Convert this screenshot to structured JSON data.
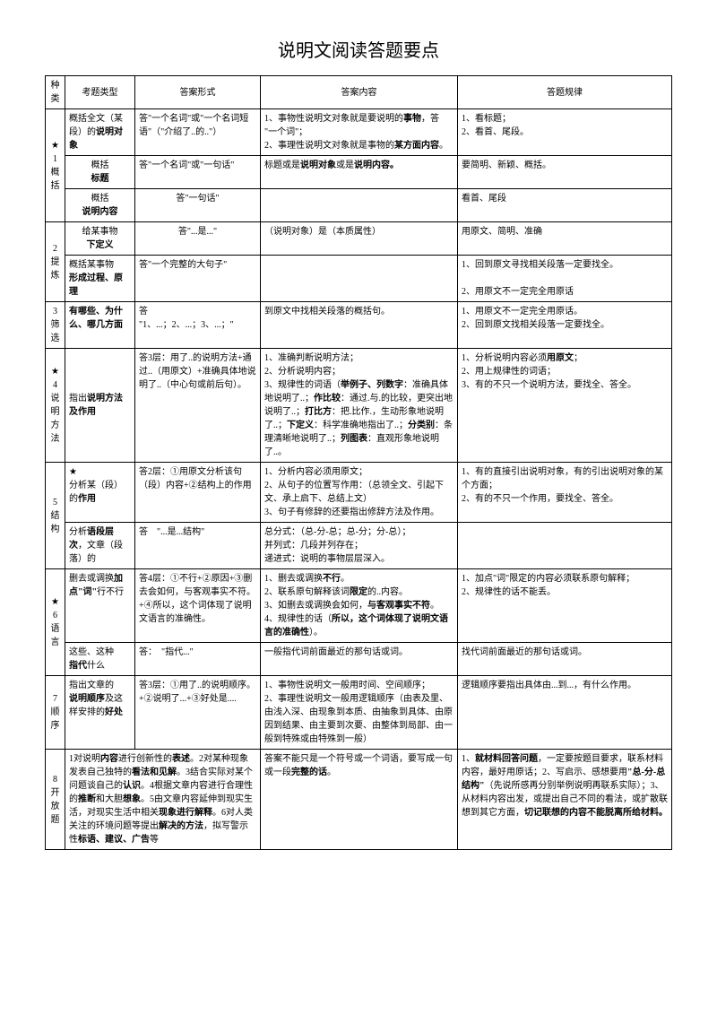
{
  "title": "说明文阅读答题要点",
  "headers": {
    "col1": "种类",
    "col2": "考题类型",
    "col3": "答案形式",
    "col4": "答案内容",
    "col5": "答题规律"
  },
  "sections": [
    {
      "label": "★\n1\n概括",
      "rows": [
        {
          "type": "概括全文（某段）的说明对象",
          "form": "答\"一个名词\"或\"一个名词短语\"（\"介绍了..的..\"）",
          "content": "1、事物性说明文对象就是要说明的事物，答\"一个词\"；\n2、事理性说明文对象就是事物的某方面内容。",
          "rule": "1、看标题；\n2、看首、尾段。"
        },
        {
          "type": "概括标题",
          "form": "答\"一个名词\"或\"一句话\"",
          "content": "标题或是说明对象或是说明内容。",
          "rule": "要简明、新颖、概括。"
        },
        {
          "type": "概括说明内容",
          "form": "答\"一句话\"",
          "content": "",
          "rule": "看首、尾段"
        }
      ]
    },
    {
      "label": "2\n提炼",
      "rows": [
        {
          "type": "给某事物下定义",
          "form": "答\"...是...\"",
          "content": "（说明对象）是（本质属性）",
          "rule": "用原文、简明、准确"
        },
        {
          "type": "概括某事物形成过程、原理",
          "form": "答\"一个完整的大句子\"",
          "content": "",
          "rule": "1、回到原文寻找相关段落一定要找全。\n2、用原文不一定完全用原话"
        }
      ]
    },
    {
      "label": "3\n筛选",
      "rows": [
        {
          "type": "有哪些、为什么、哪几方面",
          "form": "答\"1、...；2、...；3、...；\"",
          "content": "到原文中找相关段落的概括句。",
          "rule": "1、用原文不一定完全用原话。\n2、回到原文找相关段落一定要找全。"
        }
      ]
    },
    {
      "label": "★\n4\n说明方法",
      "rows": [
        {
          "type": "指出说明方法及作用",
          "form": "答3层：用了..的说明方法+通过..（用原文）+准确具体地说明了..（中心句或前后句）。",
          "content": "1、准确判断说明方法；\n2、分析说明内容；\n3、规律性的词语（举例子、列数字：准确具体地说明了..；作比较：通过.与.的比较，更突出地说明了..；打比方：把.比作.，生动形象地说明了..；下定义：科学准确地指出了..；分类别：条理清晰地说明了..；列图表：直观形象地说明了..）",
          "rule": "1、分析说明内容必须用原文；\n2、用上规律性的词语；\n3、有的不只一个说明方法，要找全、答全。"
        }
      ]
    },
    {
      "label": "5\n结构",
      "rows": [
        {
          "type": "★\n分析某（段）的作用",
          "form": "答2层：①用原文分析该句（段）内容+②结构上的作用",
          "content": "1、分析内容必须用原文；\n2、从句子的位置写作用：（总领全文、引起下文、承上启下、总结上文）\n3、句子有修辞的还要指出修辞方法及作用。",
          "rule": "1、有的直接引出说明对象，有的引出说明对象的某个方面；\n2、有的不只一个作用，要找全、答全。"
        },
        {
          "type": "分析语段层次，文章（段落）的",
          "form": "答\"...是...结构\"",
          "content": "总分式：（总-分-总；总-分；分-总）；\n并列式：几段并列存在；\n递进式：说明的事物层层深入。",
          "rule": ""
        }
      ]
    },
    {
      "label": "★\n6\n语言",
      "rows": [
        {
          "type": "删去或调换加点\"词\"行不行",
          "form": "答4层：①不行+②原因+③删去会如何，与客观事实不符。+④所以，这个词体现了说明文语言的准确性。",
          "content": "1、删去或调换不行。\n2、联系原句解释该词限定的..内容。\n3、如删去或调换会如何，与客观事实不符。\n4、规律性的话（所以，这个词体现了说明文语言的准确性）。",
          "rule": "1、加点\"词\"限定的内容必须联系原句解释；\n2、规律性的话不能丢。"
        },
        {
          "type": "这些、这种指代什么",
          "form": "答：\"指代...\"",
          "content": "一般指代词前面最近的那句话或词。",
          "rule": "找代词前面最近的那句话或词。"
        }
      ]
    },
    {
      "label": "7\n顺序",
      "rows": [
        {
          "type": "指出文章的说明顺序及这样安排的好处",
          "form": "答3层：①用了..的说明顺序。+②说明了...+③好处是...",
          "content": "1、事物性说明文一般用时间、空间顺序；\n2、事理性说明文一般用逻辑顺序（由表及里、由浅入深、由现象到本质、由抽象到具体、由原因到结果、由主要到次要、由整体到局部、由一般到特殊或由特殊到一般）",
          "rule": "逻辑顺序要指出具体由...到...，有什么作用。"
        }
      ]
    },
    {
      "label": "8\n开放题",
      "rows": [
        {
          "type": "1对说明内容进行创新性的表述。2对某种现象发表自己独特的看法和见解。3结合实际对某个问题谈自己的认识。4根据文章内容进行合理性的推断和大胆想象。5由文章内容延伸到现实生活，对现实生活中相关现象进行解释。6对人类关注的环境问题等提出解决的方法，拟写警示性标语、建议、广告等",
          "form": "",
          "content": "答案不能只是一个符号或一个词语，要写成一句或一段完整的话。",
          "rule": "1、就材料回答问题，一定要按题目要求，联系材料内容，最好用原话；2、写启示、感想要用\"总-分-总结构\"（先说所感再分别举例说明再联系实际）；3、从材料内容出发，或提出自己不同的看法，或扩散联想到其它方面，切记联想的内容不能脱离所给材料。"
        }
      ]
    }
  ]
}
